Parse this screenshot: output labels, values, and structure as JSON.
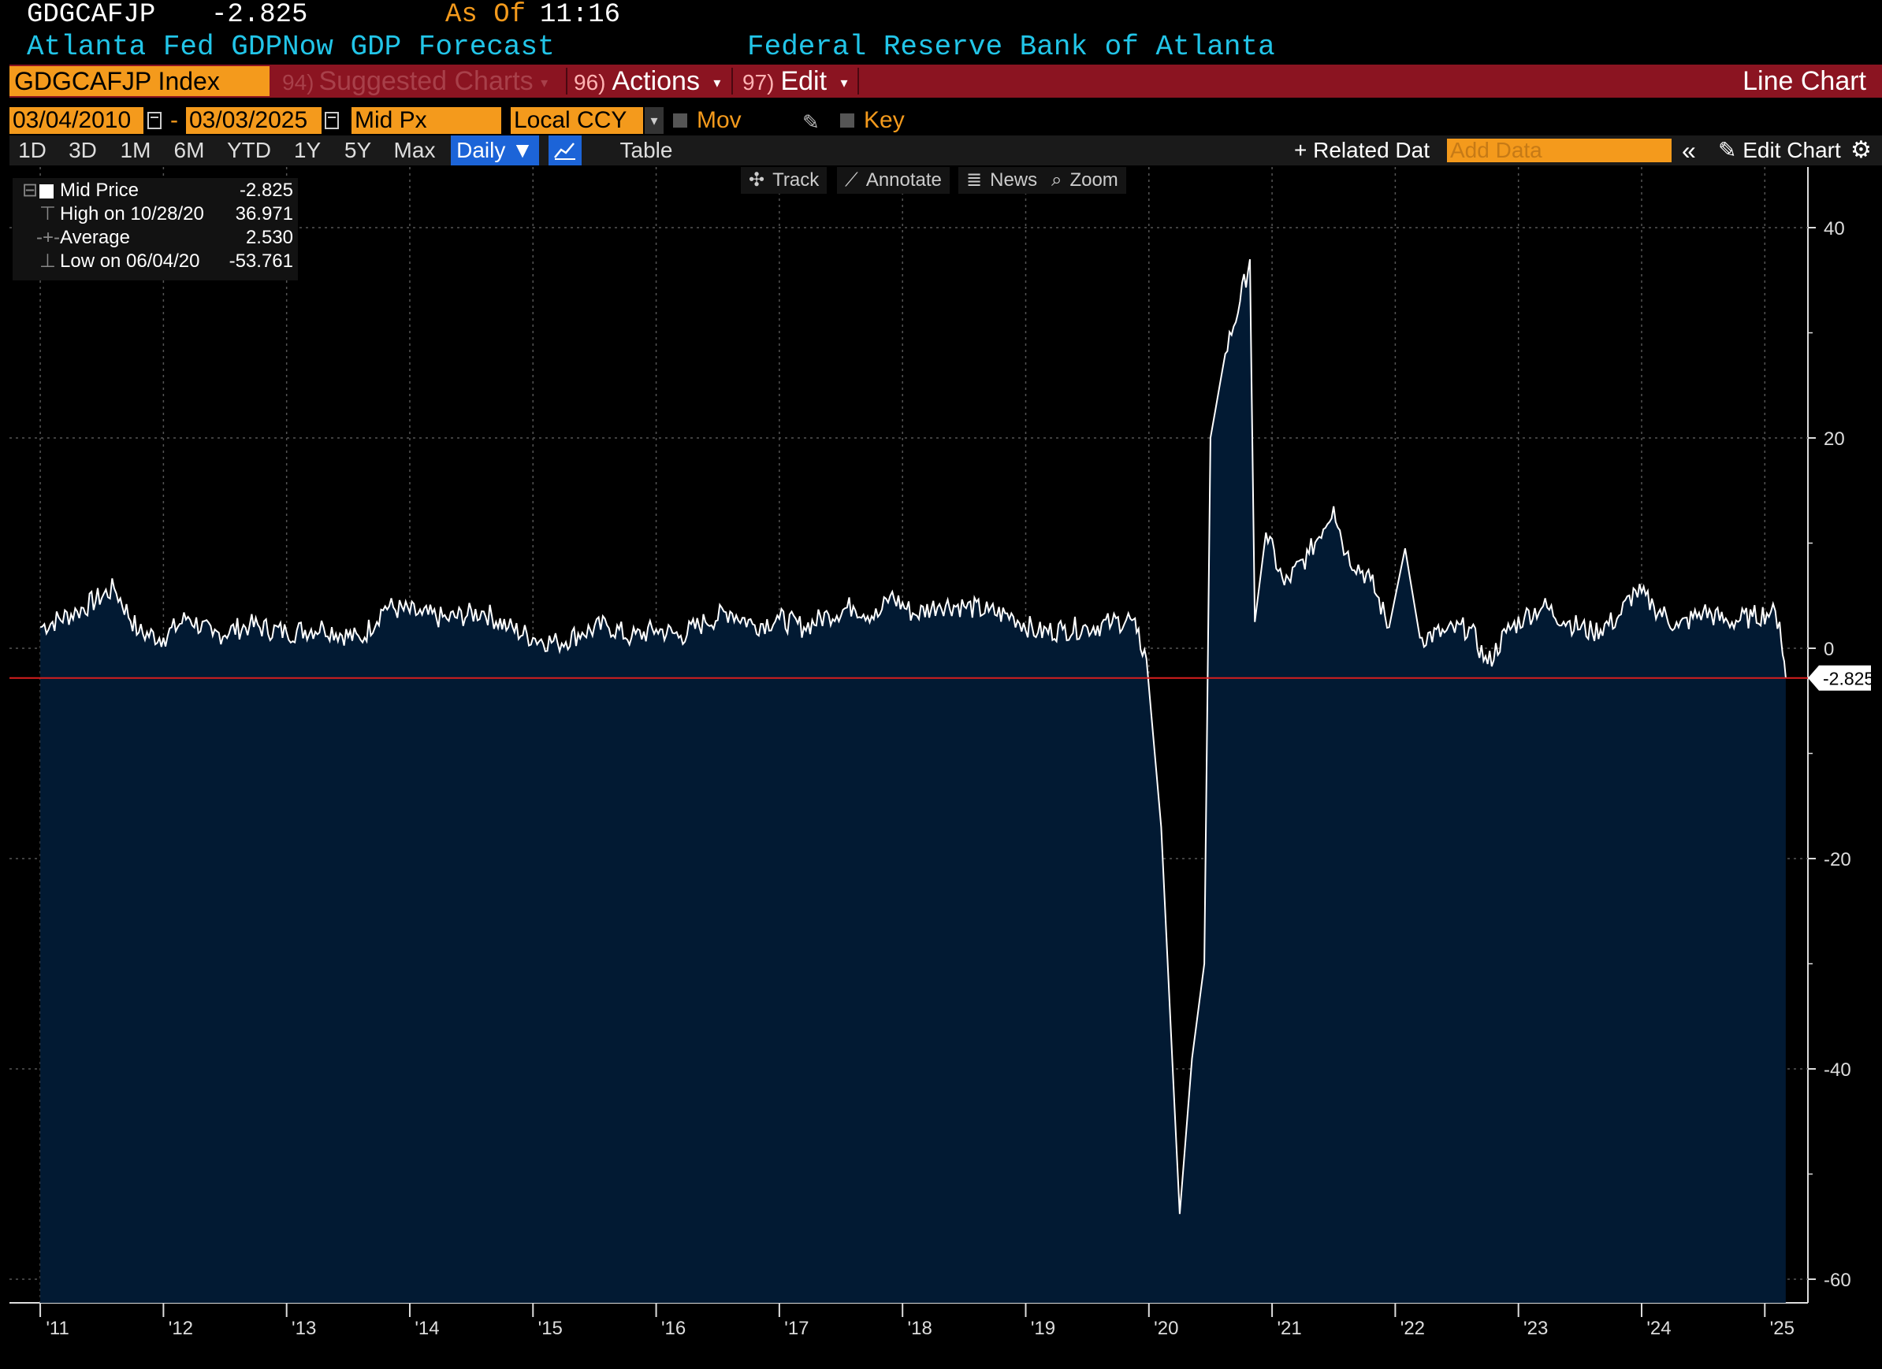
{
  "header": {
    "ticker": "GDGCAFJP",
    "last_value": "-2.825",
    "as_of_label": "As Of",
    "as_of_time": "11:16",
    "description": "Atlanta Fed GDPNow GDP Forecast",
    "source": "Federal Reserve Bank of Atlanta"
  },
  "toolbar": {
    "security": "GDGCAFJP Index",
    "suggested_num": "94)",
    "suggested_label": "Suggested Charts",
    "actions_num": "96)",
    "actions_label": "Actions",
    "edit_num": "97)",
    "edit_label": "Edit",
    "chart_type": "Line Chart"
  },
  "date_row": {
    "start_date": "03/04/2010",
    "end_date": "03/03/2025",
    "dash": "-",
    "field": "Mid Px",
    "currency": "Local CCY",
    "mov_avgs": "Mov Avgs",
    "key_events": "Key Events"
  },
  "range_row": {
    "buttons": [
      "1D",
      "3D",
      "1M",
      "6M",
      "YTD",
      "1Y",
      "5Y",
      "Max"
    ],
    "frequency": "Daily",
    "table": "Table",
    "related": "Related Dat",
    "add_data_placeholder": "Add Data",
    "edit_chart": "Edit Chart"
  },
  "chart_tools": [
    "Track",
    "Annotate",
    "News",
    "Zoom"
  ],
  "legend": {
    "rows": [
      {
        "label": "Mid Price",
        "value": "-2.825"
      },
      {
        "label": "High on 10/28/20",
        "value": "36.971"
      },
      {
        "label": "Average",
        "value": "2.530"
      },
      {
        "label": "Low on 06/04/20",
        "value": "-53.761"
      }
    ]
  },
  "colors": {
    "background": "#000000",
    "area_fill": "#021a33",
    "line": "#ffffff",
    "last_price_line": "#d81e1e",
    "accent_orange": "#f49a1c",
    "header_cyan": "#22c5e8",
    "menu_red": "#8b1421"
  },
  "chart_data": {
    "type": "area",
    "title": "",
    "xlabel": "",
    "ylabel": "",
    "ylim": [
      -62,
      45
    ],
    "y_ticks": [
      40,
      20,
      0,
      -20,
      -40,
      -60
    ],
    "x_ticks": [
      "'11",
      "'12",
      "'13",
      "'14",
      "'15",
      "'16",
      "'17",
      "'18",
      "'19",
      "'20",
      "'21",
      "'22",
      "'23",
      "'24",
      "'25"
    ],
    "last_value_label": "-2.825",
    "last_value": -2.825,
    "grid": true,
    "series": [
      {
        "values": [
          [
            2011.0,
            2.0
          ],
          [
            2011.3,
            3.5
          ],
          [
            2011.6,
            5.7
          ],
          [
            2011.8,
            1.5
          ],
          [
            2012.0,
            1.0
          ],
          [
            2012.2,
            3.0
          ],
          [
            2012.4,
            1.2
          ],
          [
            2012.7,
            2.2
          ],
          [
            2013.0,
            1.5
          ],
          [
            2013.3,
            2.0
          ],
          [
            2013.6,
            0.8
          ],
          [
            2013.8,
            4.0
          ],
          [
            2014.1,
            3.2
          ],
          [
            2014.3,
            2.8
          ],
          [
            2014.6,
            3.5
          ],
          [
            2014.8,
            2.0
          ],
          [
            2015.0,
            1.0
          ],
          [
            2015.2,
            0.5
          ],
          [
            2015.4,
            1.5
          ],
          [
            2015.6,
            2.2
          ],
          [
            2015.8,
            1.0
          ],
          [
            2016.0,
            1.8
          ],
          [
            2016.2,
            1.2
          ],
          [
            2016.4,
            2.5
          ],
          [
            2016.6,
            3.5
          ],
          [
            2016.8,
            2.2
          ],
          [
            2017.0,
            2.8
          ],
          [
            2017.2,
            2.0
          ],
          [
            2017.4,
            3.2
          ],
          [
            2017.6,
            4.0
          ],
          [
            2017.8,
            3.0
          ],
          [
            2017.9,
            5.0
          ],
          [
            2018.1,
            3.2
          ],
          [
            2018.3,
            4.2
          ],
          [
            2018.5,
            4.0
          ],
          [
            2018.7,
            3.5
          ],
          [
            2018.9,
            3.0
          ],
          [
            2019.1,
            1.5
          ],
          [
            2019.3,
            1.8
          ],
          [
            2019.5,
            2.0
          ],
          [
            2019.7,
            2.4
          ],
          [
            2019.85,
            2.8
          ],
          [
            2019.9,
            1.5
          ],
          [
            2019.98,
            -1.0
          ],
          [
            2020.1,
            -17.0
          ],
          [
            2020.25,
            -53.8
          ],
          [
            2020.35,
            -39.0
          ],
          [
            2020.45,
            -30.0
          ],
          [
            2020.5,
            20.0
          ],
          [
            2020.62,
            28.0
          ],
          [
            2020.74,
            33.0
          ],
          [
            2020.82,
            37.0
          ],
          [
            2020.86,
            2.5
          ],
          [
            2020.95,
            11.0
          ],
          [
            2021.1,
            6.0
          ],
          [
            2021.3,
            9.0
          ],
          [
            2021.5,
            13.5
          ],
          [
            2021.6,
            9.0
          ],
          [
            2021.8,
            6.5
          ],
          [
            2021.95,
            2.0
          ],
          [
            2022.08,
            9.5
          ],
          [
            2022.2,
            1.0
          ],
          [
            2022.4,
            1.5
          ],
          [
            2022.6,
            2.0
          ],
          [
            2022.75,
            -1.5
          ],
          [
            2022.9,
            1.5
          ],
          [
            2023.05,
            3.0
          ],
          [
            2023.2,
            4.0
          ],
          [
            2023.4,
            2.5
          ],
          [
            2023.6,
            1.5
          ],
          [
            2023.8,
            2.8
          ],
          [
            2023.95,
            5.5
          ],
          [
            2024.1,
            4.0
          ],
          [
            2024.3,
            2.0
          ],
          [
            2024.5,
            3.5
          ],
          [
            2024.7,
            2.5
          ],
          [
            2024.9,
            3.0
          ],
          [
            2025.05,
            3.5
          ],
          [
            2025.12,
            2.5
          ],
          [
            2025.17,
            -2.825
          ]
        ]
      }
    ]
  }
}
